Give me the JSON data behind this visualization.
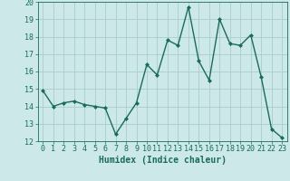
{
  "x": [
    0,
    1,
    2,
    3,
    4,
    5,
    6,
    7,
    8,
    9,
    10,
    11,
    12,
    13,
    14,
    15,
    16,
    17,
    18,
    19,
    20,
    21,
    22,
    23
  ],
  "y": [
    14.9,
    14.0,
    14.2,
    14.3,
    14.1,
    14.0,
    13.9,
    12.4,
    13.3,
    14.2,
    16.4,
    15.8,
    17.8,
    17.5,
    19.7,
    16.6,
    15.5,
    19.0,
    17.6,
    17.5,
    18.1,
    15.7,
    12.7,
    12.2
  ],
  "line_color": "#1a6b5a",
  "marker": "D",
  "marker_size": 2.0,
  "bg_color": "#cce8e8",
  "grid_color": "#aacccc",
  "xlabel": "Humidex (Indice chaleur)",
  "ylim": [
    12,
    20
  ],
  "xlim_min": -0.5,
  "xlim_max": 23.5,
  "yticks": [
    12,
    13,
    14,
    15,
    16,
    17,
    18,
    19,
    20
  ],
  "xticks": [
    0,
    1,
    2,
    3,
    4,
    5,
    6,
    7,
    8,
    9,
    10,
    11,
    12,
    13,
    14,
    15,
    16,
    17,
    18,
    19,
    20,
    21,
    22,
    23
  ],
  "xlabel_fontsize": 7,
  "tick_fontsize": 6,
  "line_width": 1.0,
  "text_color": "#1a6b5a"
}
